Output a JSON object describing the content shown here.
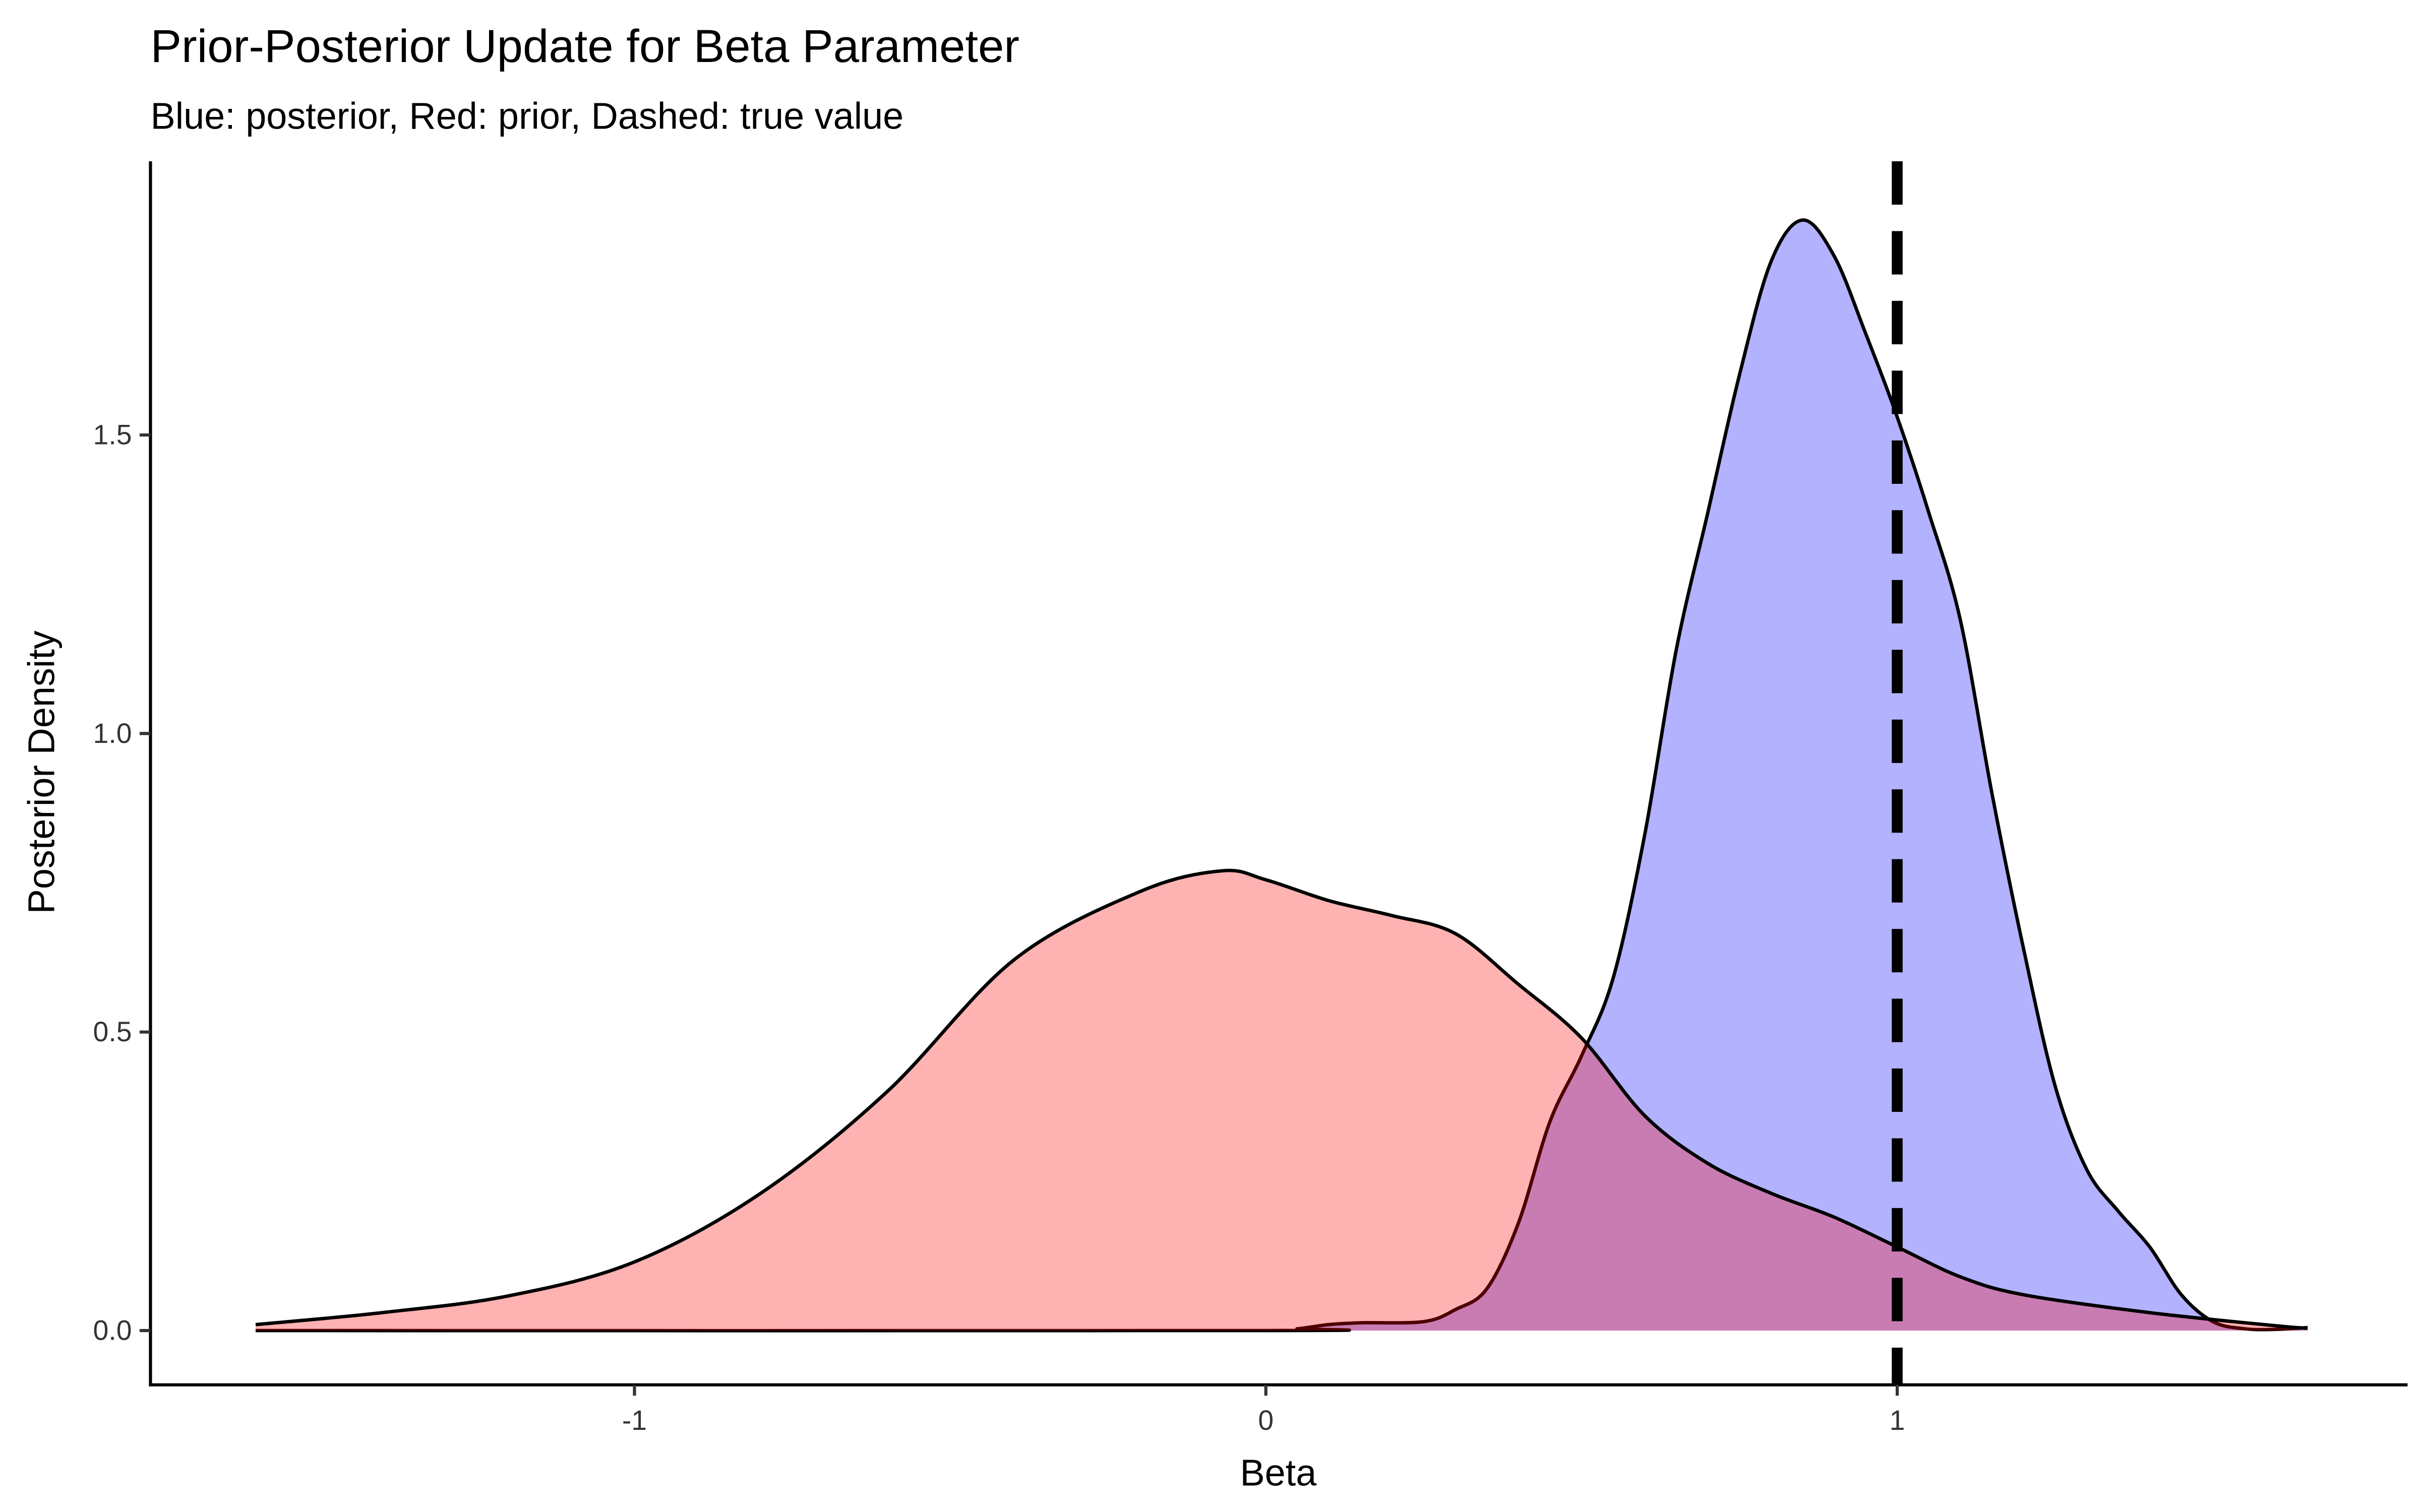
{
  "chart_data": {
    "type": "area",
    "title": "Prior-Posterior Update for Beta Parameter",
    "subtitle": "Blue: posterior, Red: prior, Dashed: true value",
    "xlabel": "Beta",
    "ylabel": "Posterior Density",
    "xlim": [
      -1.75,
      1.8
    ],
    "ylim": [
      -0.09,
      1.95
    ],
    "x_ticks": [
      -1,
      0,
      1
    ],
    "x_tick_labels": [
      "-1",
      "0",
      "1"
    ],
    "y_ticks": [
      0,
      0.5,
      1,
      1.5
    ],
    "y_tick_labels": [
      "0.0",
      "0.5",
      "1.0",
      "1.5"
    ],
    "grid": false,
    "reference_line": {
      "x": 1,
      "style": "dashed",
      "color": "#000000"
    },
    "series": [
      {
        "key": "posterior",
        "color": "#0000FF",
        "fill_opacity": 0.3,
        "x": [
          -1.6,
          0.0,
          0.05,
          0.1,
          0.15,
          0.25,
          0.3,
          0.35,
          0.4,
          0.45,
          0.5,
          0.55,
          0.6,
          0.65,
          0.7,
          0.75,
          0.8,
          0.85,
          0.9,
          0.95,
          1.0,
          1.05,
          1.1,
          1.15,
          1.2,
          1.25,
          1.3,
          1.35,
          1.4,
          1.45,
          1.5,
          1.55,
          1.6,
          1.65
        ],
        "y": [
          0,
          0,
          0.003,
          0.01,
          0.013,
          0.015,
          0.035,
          0.07,
          0.18,
          0.35,
          0.46,
          0.59,
          0.83,
          1.14,
          1.37,
          1.6,
          1.79,
          1.86,
          1.8,
          1.67,
          1.53,
          1.37,
          1.19,
          0.9,
          0.64,
          0.41,
          0.27,
          0.2,
          0.14,
          0.06,
          0.015,
          0.003,
          0.002,
          0.005
        ]
      },
      {
        "key": "prior",
        "color": "#FF0000",
        "fill_opacity": 0.3,
        "x": [
          -1.6,
          -1.4,
          -1.2,
          -1.0,
          -0.8,
          -0.6,
          -0.4,
          -0.2,
          -0.07,
          0.0,
          0.1,
          0.2,
          0.3,
          0.4,
          0.5,
          0.6,
          0.7,
          0.8,
          0.9,
          1.0,
          1.1,
          1.2,
          1.4,
          1.6,
          1.65
        ],
        "y": [
          0.01,
          0.03,
          0.058,
          0.115,
          0.23,
          0.4,
          0.62,
          0.735,
          0.77,
          0.755,
          0.72,
          0.695,
          0.665,
          0.58,
          0.49,
          0.36,
          0.28,
          0.23,
          0.19,
          0.14,
          0.09,
          0.06,
          0.03,
          0.008,
          0.004
        ]
      }
    ]
  }
}
